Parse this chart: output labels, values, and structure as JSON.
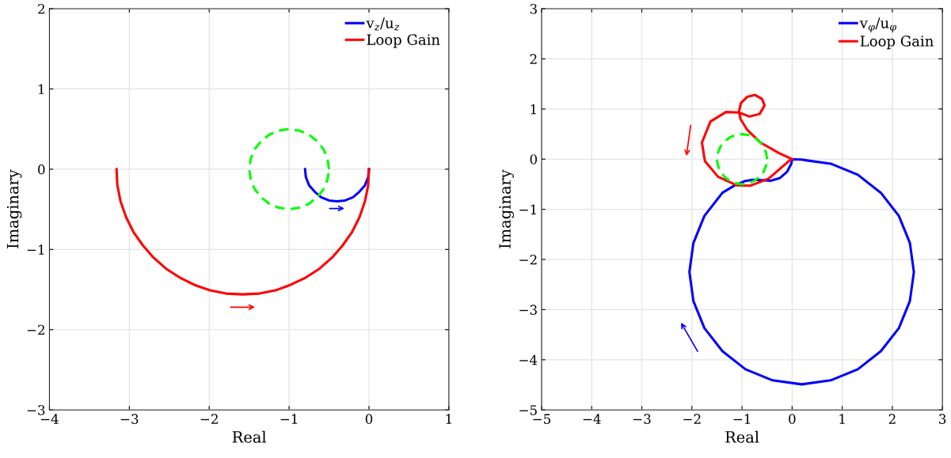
{
  "chart_data": [
    {
      "type": "line",
      "xlabel": "Real",
      "ylabel": "Imaginary",
      "xlim": [
        -4,
        1
      ],
      "ylim": [
        -3,
        2
      ],
      "xticks": [
        -4,
        -3,
        -2,
        -1,
        0,
        1
      ],
      "yticks": [
        -3,
        -2,
        -1,
        0,
        1,
        2
      ],
      "grid": true,
      "legend": "top right",
      "series": [
        {
          "name": "v$_{z}$/u$_{z}$",
          "color": "#0000ff",
          "x": [
            -0.8,
            -0.79,
            -0.75,
            -0.68,
            -0.6,
            -0.5,
            -0.4,
            -0.3,
            -0.2,
            -0.12,
            -0.05,
            -0.01,
            0
          ],
          "values": [
            0,
            -0.1,
            -0.2,
            -0.28,
            -0.35,
            -0.39,
            -0.4,
            -0.39,
            -0.35,
            -0.28,
            -0.2,
            -0.1,
            0
          ]
        },
        {
          "name": "Loop Gain",
          "color": "#ff0000",
          "x": [
            -3.16,
            -3.15,
            -3.11,
            -3.04,
            -2.95,
            -2.83,
            -2.7,
            -2.54,
            -2.37,
            -2.19,
            -1.99,
            -1.79,
            -1.58,
            -1.37,
            -1.17,
            -0.98,
            -0.79,
            -0.62,
            -0.46,
            -0.33,
            -0.21,
            -0.12,
            -0.05,
            -0.01,
            0
          ],
          "values": [
            0,
            -0.2,
            -0.4,
            -0.6,
            -0.78,
            -0.95,
            -1.1,
            -1.24,
            -1.35,
            -1.44,
            -1.51,
            -1.55,
            -1.56,
            -1.55,
            -1.51,
            -1.44,
            -1.35,
            -1.24,
            -1.1,
            -0.95,
            -0.78,
            -0.6,
            -0.4,
            -0.2,
            0
          ]
        },
        {
          "color": "#00ff00",
          "line_style": "dashed",
          "x": [
            -0.5,
            -0.52,
            -0.57,
            -0.65,
            -0.75,
            -0.87,
            -1,
            -1.13,
            -1.25,
            -1.35,
            -1.43,
            -1.48,
            -1.5,
            -1.48,
            -1.43,
            -1.35,
            -1.25,
            -1.13,
            -1,
            -0.87,
            -0.75,
            -0.65,
            -0.57,
            -0.52,
            -0.5
          ],
          "values": [
            0,
            0.13,
            0.25,
            0.35,
            0.43,
            0.48,
            0.5,
            0.48,
            0.43,
            0.35,
            0.25,
            0.13,
            0,
            -0.13,
            -0.25,
            -0.35,
            -0.43,
            -0.48,
            -0.5,
            -0.48,
            -0.43,
            -0.35,
            -0.25,
            -0.13,
            -0.02
          ]
        }
      ]
    },
    {
      "type": "line",
      "xlabel": "Real",
      "ylabel": "Imaginary",
      "xlim": [
        -5,
        3
      ],
      "ylim": [
        -5,
        3
      ],
      "xticks": [
        -5,
        -4,
        -3,
        -2,
        -1,
        0,
        1,
        2,
        3
      ],
      "yticks": [
        -5,
        -4,
        -3,
        -2,
        -1,
        0,
        1,
        2,
        3
      ],
      "grid": true,
      "legend": "top right",
      "series": [
        {
          "name": "v$_{φ}$/u$_{φ}$",
          "color": "#0000ff",
          "x": [
            0,
            0.19,
            0.77,
            1.31,
            1.77,
            2.13,
            2.35,
            2.43,
            2.35,
            2.13,
            1.77,
            1.31,
            0.77,
            0.19,
            -0.39,
            -0.93,
            -1.39,
            -1.75,
            -1.97,
            -2.05,
            -1.97,
            -1.75,
            -1.39,
            -1.14,
            -0.95,
            -0.79,
            -0.6,
            -0.43,
            -0.25,
            -0.1,
            -0.02,
            0
          ],
          "values": [
            0,
            -0.01,
            -0.09,
            -0.31,
            -0.67,
            -1.13,
            -1.67,
            -2.25,
            -2.83,
            -3.37,
            -3.83,
            -4.19,
            -4.41,
            -4.49,
            -4.41,
            -4.19,
            -3.83,
            -3.37,
            -2.83,
            -2.25,
            -1.67,
            -1.13,
            -0.67,
            -0.52,
            -0.44,
            -0.41,
            -0.42,
            -0.43,
            -0.38,
            -0.25,
            -0.1,
            -0.02
          ]
        },
        {
          "name": "Loop Gain",
          "color": "#ff0000",
          "x": [
            0,
            -0.26,
            -0.63,
            -0.9,
            -1.03,
            -1.06,
            -1.02,
            -0.9,
            -0.74,
            -0.6,
            -0.55,
            -0.65,
            -0.85,
            -1.06,
            -1.32,
            -1.63,
            -1.8,
            -1.74,
            -1.48,
            -1.11,
            -0.84,
            -0.47,
            -0.02
          ],
          "values": [
            0,
            0.12,
            0.33,
            0.59,
            0.8,
            0.95,
            1.12,
            1.24,
            1.28,
            1.2,
            1.07,
            0.9,
            0.85,
            0.93,
            0.94,
            0.75,
            0.33,
            -0.04,
            -0.35,
            -0.52,
            -0.53,
            -0.39,
            0
          ]
        },
        {
          "color": "#00ff00",
          "line_style": "dashed",
          "x": [
            -0.5,
            -0.52,
            -0.57,
            -0.65,
            -0.75,
            -0.87,
            -1,
            -1.13,
            -1.25,
            -1.35,
            -1.43,
            -1.48,
            -1.5,
            -1.48,
            -1.43,
            -1.35,
            -1.25,
            -1.13,
            -1,
            -0.87,
            -0.75,
            -0.65,
            -0.57,
            -0.52,
            -0.5
          ],
          "values": [
            0,
            0.13,
            0.25,
            0.35,
            0.43,
            0.48,
            0.5,
            0.48,
            0.43,
            0.35,
            0.25,
            0.13,
            0,
            -0.13,
            -0.25,
            -0.35,
            -0.43,
            -0.48,
            -0.5,
            -0.48,
            -0.43,
            -0.35,
            -0.25,
            -0.13,
            -0.02
          ]
        }
      ]
    }
  ]
}
